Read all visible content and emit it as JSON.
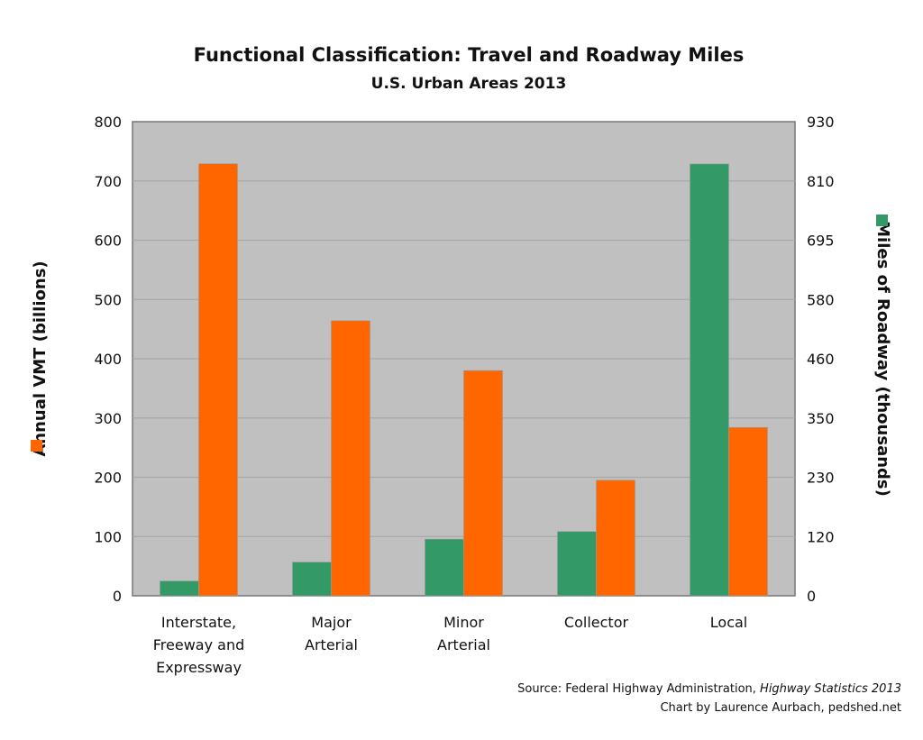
{
  "chart_data": {
    "type": "bar",
    "title": "Functional Classification: Travel and Roadway Miles",
    "subtitle": "U.S. Urban Areas 2013",
    "categories": [
      [
        "Interstate,",
        "Freeway and",
        "Expressway"
      ],
      [
        "Major",
        "Arterial"
      ],
      [
        "Minor",
        "Arterial"
      ],
      [
        "Collector"
      ],
      [
        "Local"
      ]
    ],
    "series": [
      {
        "name": "Miles of Roadway (thousands)",
        "axis": "right",
        "color": "#339966",
        "values": [
          29,
          66,
          111,
          126,
          847
        ]
      },
      {
        "name": "Annual VMT (billions)",
        "axis": "left",
        "color": "#ff6600",
        "values": [
          729,
          464,
          380,
          195,
          284
        ]
      }
    ],
    "left_axis": {
      "label": "Annual VMT (billions)",
      "range": [
        0,
        800
      ],
      "ticks": [
        "0",
        "100",
        "200",
        "300",
        "400",
        "500",
        "600",
        "700",
        "800"
      ]
    },
    "right_axis": {
      "label": "Miles of Roadway (thousands)",
      "range": [
        0,
        930
      ],
      "ticks": [
        "0",
        "120",
        "230",
        "350",
        "460",
        "580",
        "695",
        "810",
        "930"
      ]
    },
    "grid": true,
    "plot_background": "#c0c0c0",
    "source_prefix": "Source: Federal Highway Administration, ",
    "source_title": "Highway Statistics 2013",
    "credit": "Chart by Laurence Aurbach, pedshed.net"
  }
}
